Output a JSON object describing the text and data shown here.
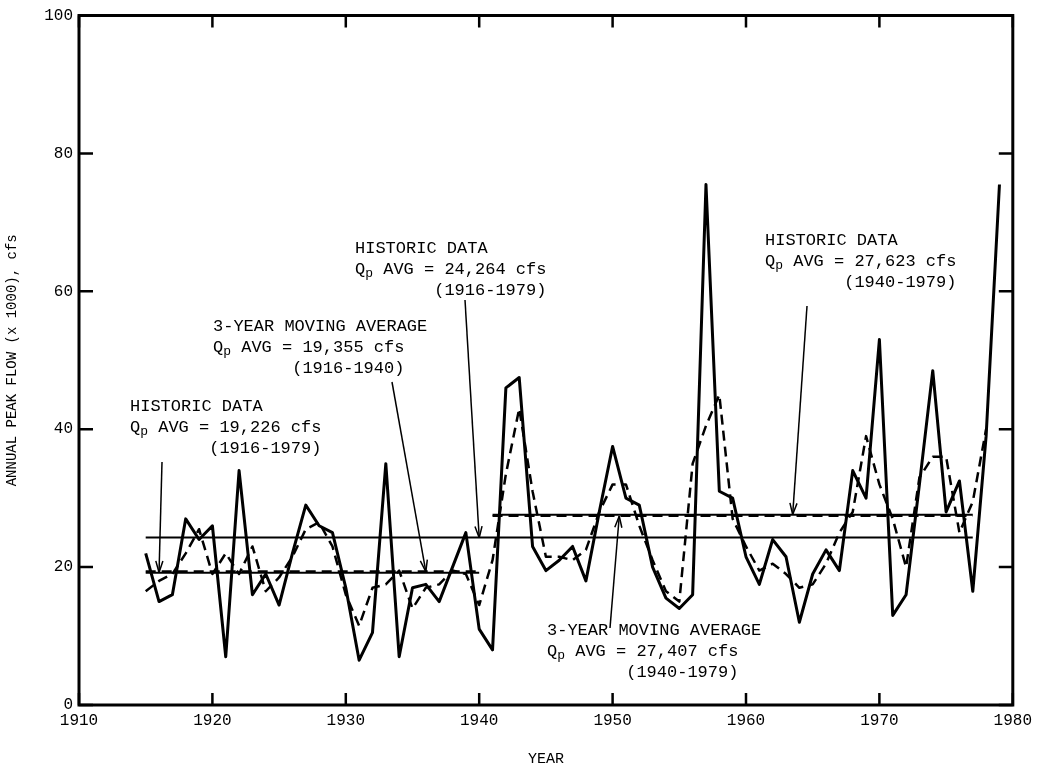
{
  "chart_data": {
    "type": "line",
    "xlabel": "YEAR",
    "ylabel": "ANNUAL PEAK FLOW (x 1000), cfs",
    "x": [
      1915,
      1916,
      1917,
      1918,
      1919,
      1920,
      1921,
      1922,
      1923,
      1924,
      1925,
      1926,
      1927,
      1928,
      1929,
      1930,
      1931,
      1932,
      1933,
      1934,
      1935,
      1936,
      1937,
      1938,
      1939,
      1940,
      1941,
      1942,
      1943,
      1944,
      1945,
      1946,
      1947,
      1948,
      1949,
      1950,
      1951,
      1952,
      1953,
      1954,
      1955,
      1956,
      1957,
      1958,
      1959,
      1960,
      1961,
      1962,
      1963,
      1964,
      1965,
      1966,
      1967,
      1968,
      1969,
      1970,
      1971,
      1972,
      1973,
      1974,
      1975,
      1976,
      1977,
      1978,
      1979
    ],
    "series": [
      {
        "color": "#000000",
        "line_style": "solid",
        "values": [
          22,
          15,
          16,
          27,
          24,
          26,
          7,
          34,
          16,
          19,
          14.5,
          22,
          29,
          26,
          25,
          17,
          6.5,
          10.5,
          35,
          7,
          17,
          17.5,
          15,
          20,
          25,
          11,
          8,
          46,
          47.5,
          23,
          19.5,
          21,
          23,
          18,
          28,
          37.5,
          30,
          29,
          20,
          15.5,
          14,
          16,
          75.5,
          31,
          30,
          21.5,
          17.5,
          24,
          21.5,
          12,
          19,
          22.5,
          19.5,
          34,
          30,
          53,
          13,
          16,
          32,
          48.5,
          28,
          32.5,
          16.5,
          39,
          75.5
        ]
      },
      {
        "color": "#000000",
        "line_style": "dashed",
        "values": [
          16.5,
          18,
          19,
          22,
          25.5,
          19,
          22,
          19,
          23,
          16.5,
          18.5,
          21.5,
          25.5,
          26.5,
          23,
          16,
          11.5,
          17,
          17.5,
          19.5,
          14,
          17,
          17.5,
          19.5,
          19,
          14.5,
          21,
          33.5,
          43,
          31,
          21.5,
          21.5,
          21,
          22.5,
          28,
          32,
          32,
          26,
          21,
          16.5,
          15,
          35,
          40.5,
          45,
          27,
          23,
          19.5,
          20.5,
          19,
          17,
          17.5,
          20.5,
          25,
          28,
          39,
          32,
          27,
          20,
          33,
          36,
          36,
          25,
          29.5,
          40,
          null
        ]
      },
      {
        "color": "#000000",
        "line_style": "solid",
        "x": [
          1915,
          1940
        ],
        "values": [
          19.2,
          19.2
        ]
      },
      {
        "color": "#000000",
        "line_style": "dashed",
        "x": [
          1915,
          1940
        ],
        "values": [
          19.4,
          19.4
        ]
      },
      {
        "color": "#000000",
        "line_style": "solid",
        "x": [
          1915,
          1977
        ],
        "values": [
          24.3,
          24.3
        ]
      },
      {
        "color": "#000000",
        "line_style": "solid",
        "x": [
          1941,
          1977
        ],
        "values": [
          27.6,
          27.6
        ]
      },
      {
        "color": "#000000",
        "line_style": "dashed",
        "x": [
          1941,
          1977
        ],
        "values": [
          27.4,
          27.4
        ]
      }
    ],
    "xlim": [
      1910,
      1980
    ],
    "xticks": [
      1910,
      1920,
      1930,
      1940,
      1950,
      1960,
      1970,
      1980
    ],
    "ylim": [
      0,
      100
    ],
    "yticks": [
      0,
      20,
      40,
      60,
      80,
      100
    ],
    "grid": false,
    "legend": false,
    "marker": "none",
    "annotations": [
      {
        "text": "HISTORIC DATA\nQ$_{p}$ AVG = 19,226 cfs\n(1916-1979)",
        "x": 1916,
        "y": 19.226
      },
      {
        "text": "3-YEAR MOVING AVERAGE\nQ$_{p}$ AVG = 19,355 cfs\n(1916-1940)",
        "x": 1936,
        "y": 19.355
      },
      {
        "text": "HISTORIC DATA\nQ$_{p}$ AVG = 24,264 cfs\n(1916-1979)",
        "x": 1940,
        "y": 24.264
      },
      {
        "text": "3-YEAR MOVING AVERAGE\nQ$_{p}$ AVG = 27,407 cfs\n(1940-1979)",
        "x": 1950.5,
        "y": 27.407
      },
      {
        "text": "HISTORIC DATA\nQ$_{p}$ AVG = 27,623 cfs\n(1940-1979)",
        "x": 1963.5,
        "y": 27.623
      }
    ]
  }
}
